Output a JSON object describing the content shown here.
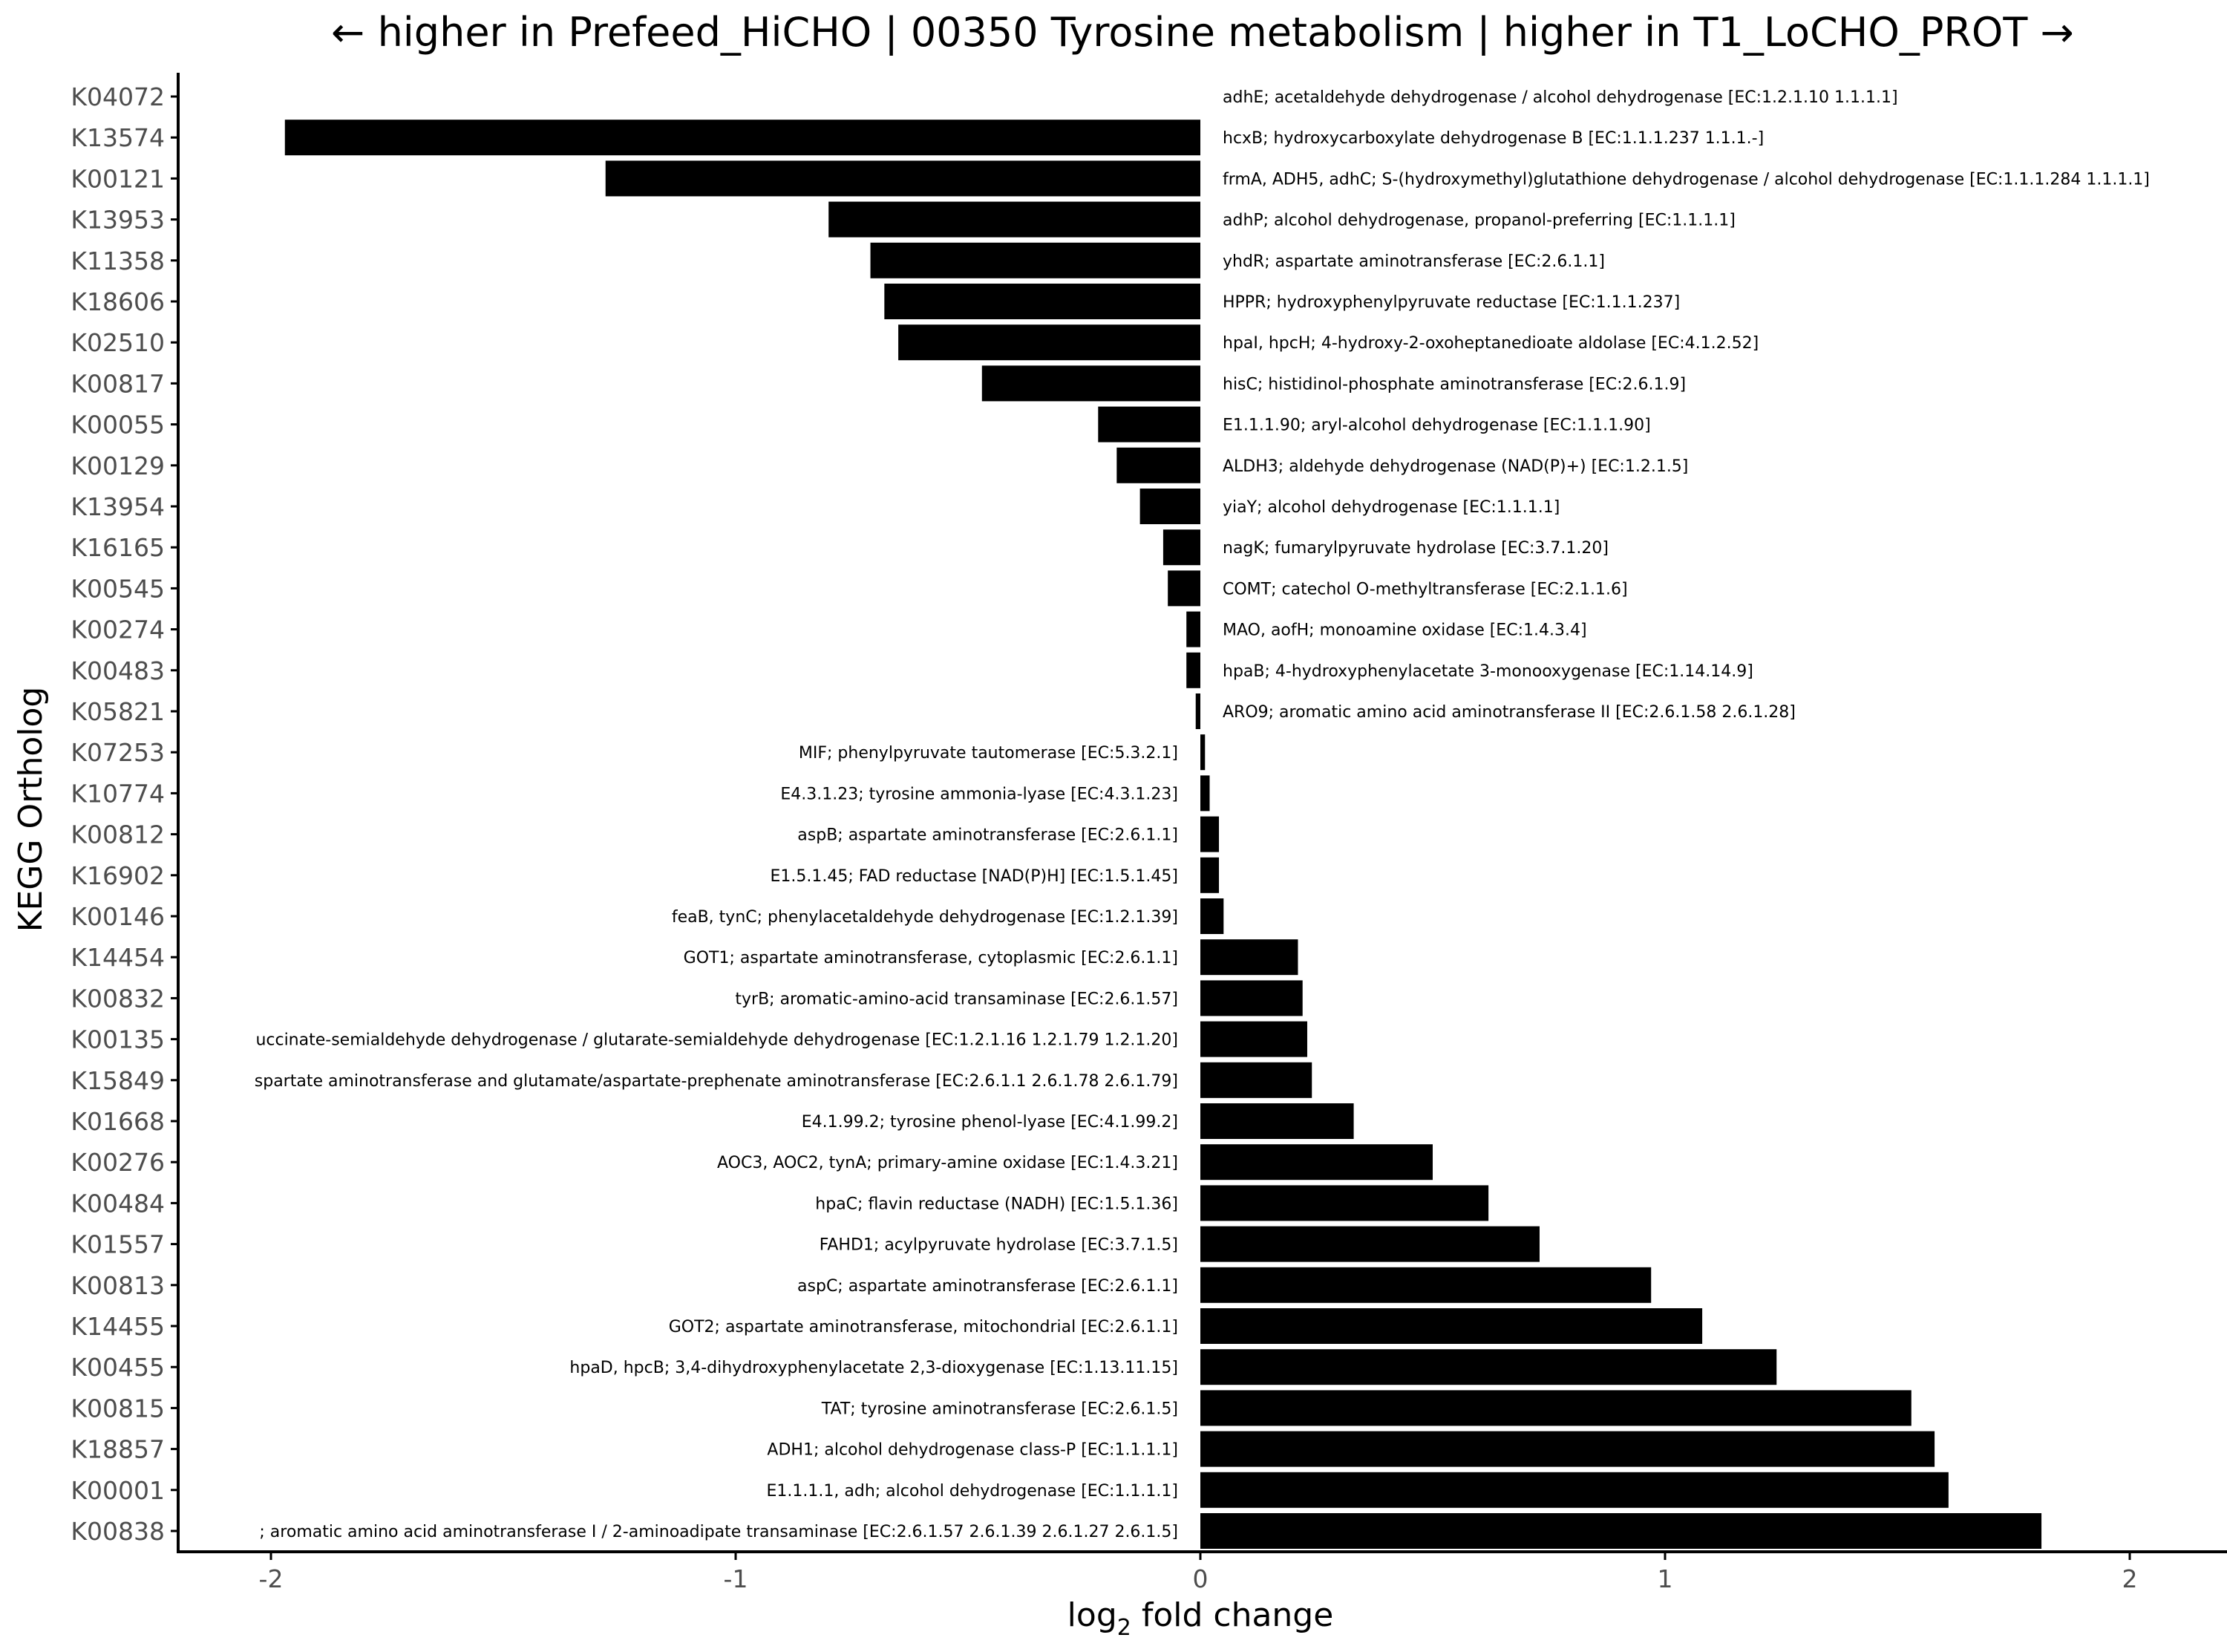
{
  "chart_data": {
    "type": "bar",
    "orientation": "horizontal",
    "title": "← higher in Prefeed_HiCHO | 00350 Tyrosine metabolism | higher in T1_LoCHO_PROT →",
    "xlabel_main": "log",
    "xlabel_sub": "2",
    "xlabel_rest": " fold change",
    "ylabel": "KEGG Ortholog",
    "xlim": [
      -2.2,
      2.2
    ],
    "xticks": [
      -2,
      -1,
      0,
      1,
      2
    ],
    "xtick_labels": [
      "-2",
      "-1",
      "0",
      "1",
      "2"
    ],
    "grid": false,
    "bars": [
      {
        "ko": "K04072",
        "value": 0.0,
        "label": "adhE; acetaldehyde dehydrogenase / alcohol dehydrogenase [EC:1.2.1.10 1.1.1.1]"
      },
      {
        "ko": "K13574",
        "value": -1.97,
        "label": "hcxB; hydroxycarboxylate dehydrogenase B [EC:1.1.1.237 1.1.1.-]"
      },
      {
        "ko": "K00121",
        "value": -1.28,
        "label": "frmA, ADH5, adhC; S-(hydroxymethyl)glutathione dehydrogenase / alcohol dehydrogenase [EC:1.1.1.284 1.1.1.1]"
      },
      {
        "ko": "K13953",
        "value": -0.8,
        "label": "adhP; alcohol dehydrogenase, propanol-preferring [EC:1.1.1.1]"
      },
      {
        "ko": "K11358",
        "value": -0.71,
        "label": "yhdR; aspartate aminotransferase [EC:2.6.1.1]"
      },
      {
        "ko": "K18606",
        "value": -0.68,
        "label": "HPPR; hydroxyphenylpyruvate reductase [EC:1.1.1.237]"
      },
      {
        "ko": "K02510",
        "value": -0.65,
        "label": "hpaI, hpcH; 4-hydroxy-2-oxoheptanedioate aldolase [EC:4.1.2.52]"
      },
      {
        "ko": "K00817",
        "value": -0.47,
        "label": "hisC; histidinol-phosphate aminotransferase [EC:2.6.1.9]"
      },
      {
        "ko": "K00055",
        "value": -0.22,
        "label": "E1.1.1.90; aryl-alcohol dehydrogenase [EC:1.1.1.90]"
      },
      {
        "ko": "K00129",
        "value": -0.18,
        "label": "ALDH3; aldehyde dehydrogenase (NAD(P)+) [EC:1.2.1.5]"
      },
      {
        "ko": "K13954",
        "value": -0.13,
        "label": "yiaY; alcohol dehydrogenase [EC:1.1.1.1]"
      },
      {
        "ko": "K16165",
        "value": -0.08,
        "label": "nagK; fumarylpyruvate hydrolase [EC:3.7.1.20]"
      },
      {
        "ko": "K00545",
        "value": -0.07,
        "label": "COMT; catechol O-methyltransferase [EC:2.1.1.6]"
      },
      {
        "ko": "K00274",
        "value": -0.03,
        "label": "MAO, aofH; monoamine oxidase [EC:1.4.3.4]"
      },
      {
        "ko": "K00483",
        "value": -0.03,
        "label": "hpaB; 4-hydroxyphenylacetate 3-monooxygenase [EC:1.14.14.9]"
      },
      {
        "ko": "K05821",
        "value": -0.01,
        "label": "ARO9; aromatic amino acid aminotransferase II [EC:2.6.1.58 2.6.1.28]"
      },
      {
        "ko": "K07253",
        "value": 0.01,
        "label": "MIF; phenylpyruvate tautomerase [EC:5.3.2.1]"
      },
      {
        "ko": "K10774",
        "value": 0.02,
        "label": "E4.3.1.23; tyrosine ammonia-lyase [EC:4.3.1.23]"
      },
      {
        "ko": "K00812",
        "value": 0.04,
        "label": "aspB; aspartate aminotransferase [EC:2.6.1.1]"
      },
      {
        "ko": "K16902",
        "value": 0.04,
        "label": "E1.5.1.45; FAD reductase [NAD(P)H] [EC:1.5.1.45]"
      },
      {
        "ko": "K00146",
        "value": 0.05,
        "label": "feaB, tynC; phenylacetaldehyde dehydrogenase [EC:1.2.1.39]"
      },
      {
        "ko": "K14454",
        "value": 0.21,
        "label": "GOT1; aspartate aminotransferase, cytoplasmic [EC:2.6.1.1]"
      },
      {
        "ko": "K00832",
        "value": 0.22,
        "label": "tyrB; aromatic-amino-acid transaminase [EC:2.6.1.57]"
      },
      {
        "ko": "K00135",
        "value": 0.23,
        "label": "uccinate-semialdehyde dehydrogenase / glutarate-semialdehyde dehydrogenase [EC:1.2.1.16 1.2.1.79 1.2.1.20]"
      },
      {
        "ko": "K15849",
        "value": 0.24,
        "label": "spartate aminotransferase and glutamate/aspartate-prephenate aminotransferase [EC:2.6.1.1 2.6.1.78 2.6.1.79]"
      },
      {
        "ko": "K01668",
        "value": 0.33,
        "label": "E4.1.99.2; tyrosine phenol-lyase [EC:4.1.99.2]"
      },
      {
        "ko": "K00276",
        "value": 0.5,
        "label": "AOC3, AOC2, tynA; primary-amine oxidase [EC:1.4.3.21]"
      },
      {
        "ko": "K00484",
        "value": 0.62,
        "label": "hpaC; flavin reductase (NADH) [EC:1.5.1.36]"
      },
      {
        "ko": "K01557",
        "value": 0.73,
        "label": "FAHD1; acylpyruvate hydrolase [EC:3.7.1.5]"
      },
      {
        "ko": "K00813",
        "value": 0.97,
        "label": "aspC; aspartate aminotransferase [EC:2.6.1.1]"
      },
      {
        "ko": "K14455",
        "value": 1.08,
        "label": "GOT2; aspartate aminotransferase, mitochondrial [EC:2.6.1.1]"
      },
      {
        "ko": "K00455",
        "value": 1.24,
        "label": "hpaD, hpcB; 3,4-dihydroxyphenylacetate 2,3-dioxygenase [EC:1.13.11.15]"
      },
      {
        "ko": "K00815",
        "value": 1.53,
        "label": "TAT; tyrosine aminotransferase [EC:2.6.1.5]"
      },
      {
        "ko": "K18857",
        "value": 1.58,
        "label": "ADH1; alcohol dehydrogenase class-P [EC:1.1.1.1]"
      },
      {
        "ko": "K00001",
        "value": 1.61,
        "label": "E1.1.1.1, adh; alcohol dehydrogenase [EC:1.1.1.1]"
      },
      {
        "ko": "K00838",
        "value": 1.81,
        "label": "; aromatic amino acid aminotransferase I / 2-aminoadipate transaminase [EC:2.6.1.57 2.6.1.39 2.6.1.27 2.6.1.5]"
      }
    ]
  }
}
